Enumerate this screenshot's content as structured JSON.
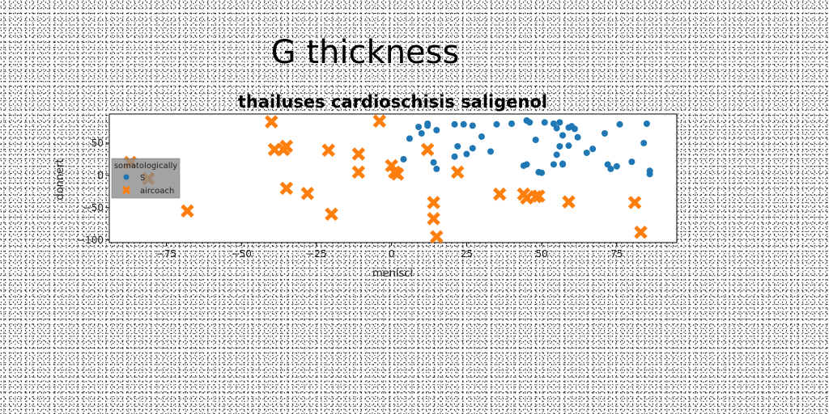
{
  "chart_data": {
    "type": "scatter",
    "suptitle": "G thickness",
    "title": "thailuses cardioschisis saligenol",
    "xlabel": "menisci",
    "ylabel": "donnert",
    "xlim": [
      -94,
      95
    ],
    "ylim": [
      -104,
      95
    ],
    "xticks": [
      -75,
      -50,
      -25,
      0,
      25,
      50,
      75
    ],
    "yticks": [
      -100,
      -50,
      0,
      50
    ],
    "grid": false,
    "legend": {
      "title": "somatologically",
      "placement": "center-left"
    },
    "series": [
      {
        "name": "S",
        "marker": "circle",
        "color": "#1f77b4",
        "points": [
          [
            4,
            25
          ],
          [
            6,
            57
          ],
          [
            9,
            75
          ],
          [
            10,
            65
          ],
          [
            12,
            77
          ],
          [
            12,
            80
          ],
          [
            15,
            70
          ],
          [
            14,
            20
          ],
          [
            15,
            10
          ],
          [
            21,
            79
          ],
          [
            22,
            45
          ],
          [
            21,
            29
          ],
          [
            24,
            79
          ],
          [
            25,
            33
          ],
          [
            27,
            42
          ],
          [
            27,
            77
          ],
          [
            30,
            60
          ],
          [
            33,
            37
          ],
          [
            35,
            79
          ],
          [
            40,
            80
          ],
          [
            44,
            15
          ],
          [
            45,
            17
          ],
          [
            45,
            85
          ],
          [
            46,
            82
          ],
          [
            48,
            55
          ],
          [
            49,
            5
          ],
          [
            50,
            4
          ],
          [
            51,
            82
          ],
          [
            54,
            17
          ],
          [
            54,
            80
          ],
          [
            55,
            73
          ],
          [
            55,
            32
          ],
          [
            56,
            45
          ],
          [
            56,
            82
          ],
          [
            57,
            62
          ],
          [
            57,
            18
          ],
          [
            57,
            17
          ],
          [
            59,
            46
          ],
          [
            59,
            74
          ],
          [
            60,
            76
          ],
          [
            61,
            72
          ],
          [
            62,
            59
          ],
          [
            65,
            35
          ],
          [
            67,
            41
          ],
          [
            71,
            65
          ],
          [
            72,
            17
          ],
          [
            73,
            10
          ],
          [
            75,
            14
          ],
          [
            76,
            79
          ],
          [
            80,
            21
          ],
          [
            84,
            50
          ],
          [
            85,
            80
          ],
          [
            86,
            2
          ],
          [
            86,
            7
          ]
        ]
      },
      {
        "name": "aircoach",
        "marker": "x",
        "color": "#ff7f0e",
        "points": [
          [
            -87,
            20
          ],
          [
            -81,
            -5
          ],
          [
            -68,
            -55
          ],
          [
            -40,
            83
          ],
          [
            -39,
            40
          ],
          [
            -36,
            40
          ],
          [
            -35,
            45
          ],
          [
            -35,
            -20
          ],
          [
            -28,
            -28
          ],
          [
            -21,
            39
          ],
          [
            -20,
            -60
          ],
          [
            -11,
            33
          ],
          [
            -11,
            5
          ],
          [
            -4,
            84
          ],
          [
            0,
            15
          ],
          [
            1,
            5
          ],
          [
            2,
            2
          ],
          [
            12,
            40
          ],
          [
            14,
            -42
          ],
          [
            14,
            -67
          ],
          [
            15,
            -95
          ],
          [
            22,
            5
          ],
          [
            36,
            -29
          ],
          [
            44,
            -29
          ],
          [
            45,
            -35
          ],
          [
            48,
            -33
          ],
          [
            49,
            -32
          ],
          [
            59,
            -41
          ],
          [
            81,
            -42
          ],
          [
            83,
            -88
          ]
        ]
      }
    ]
  }
}
